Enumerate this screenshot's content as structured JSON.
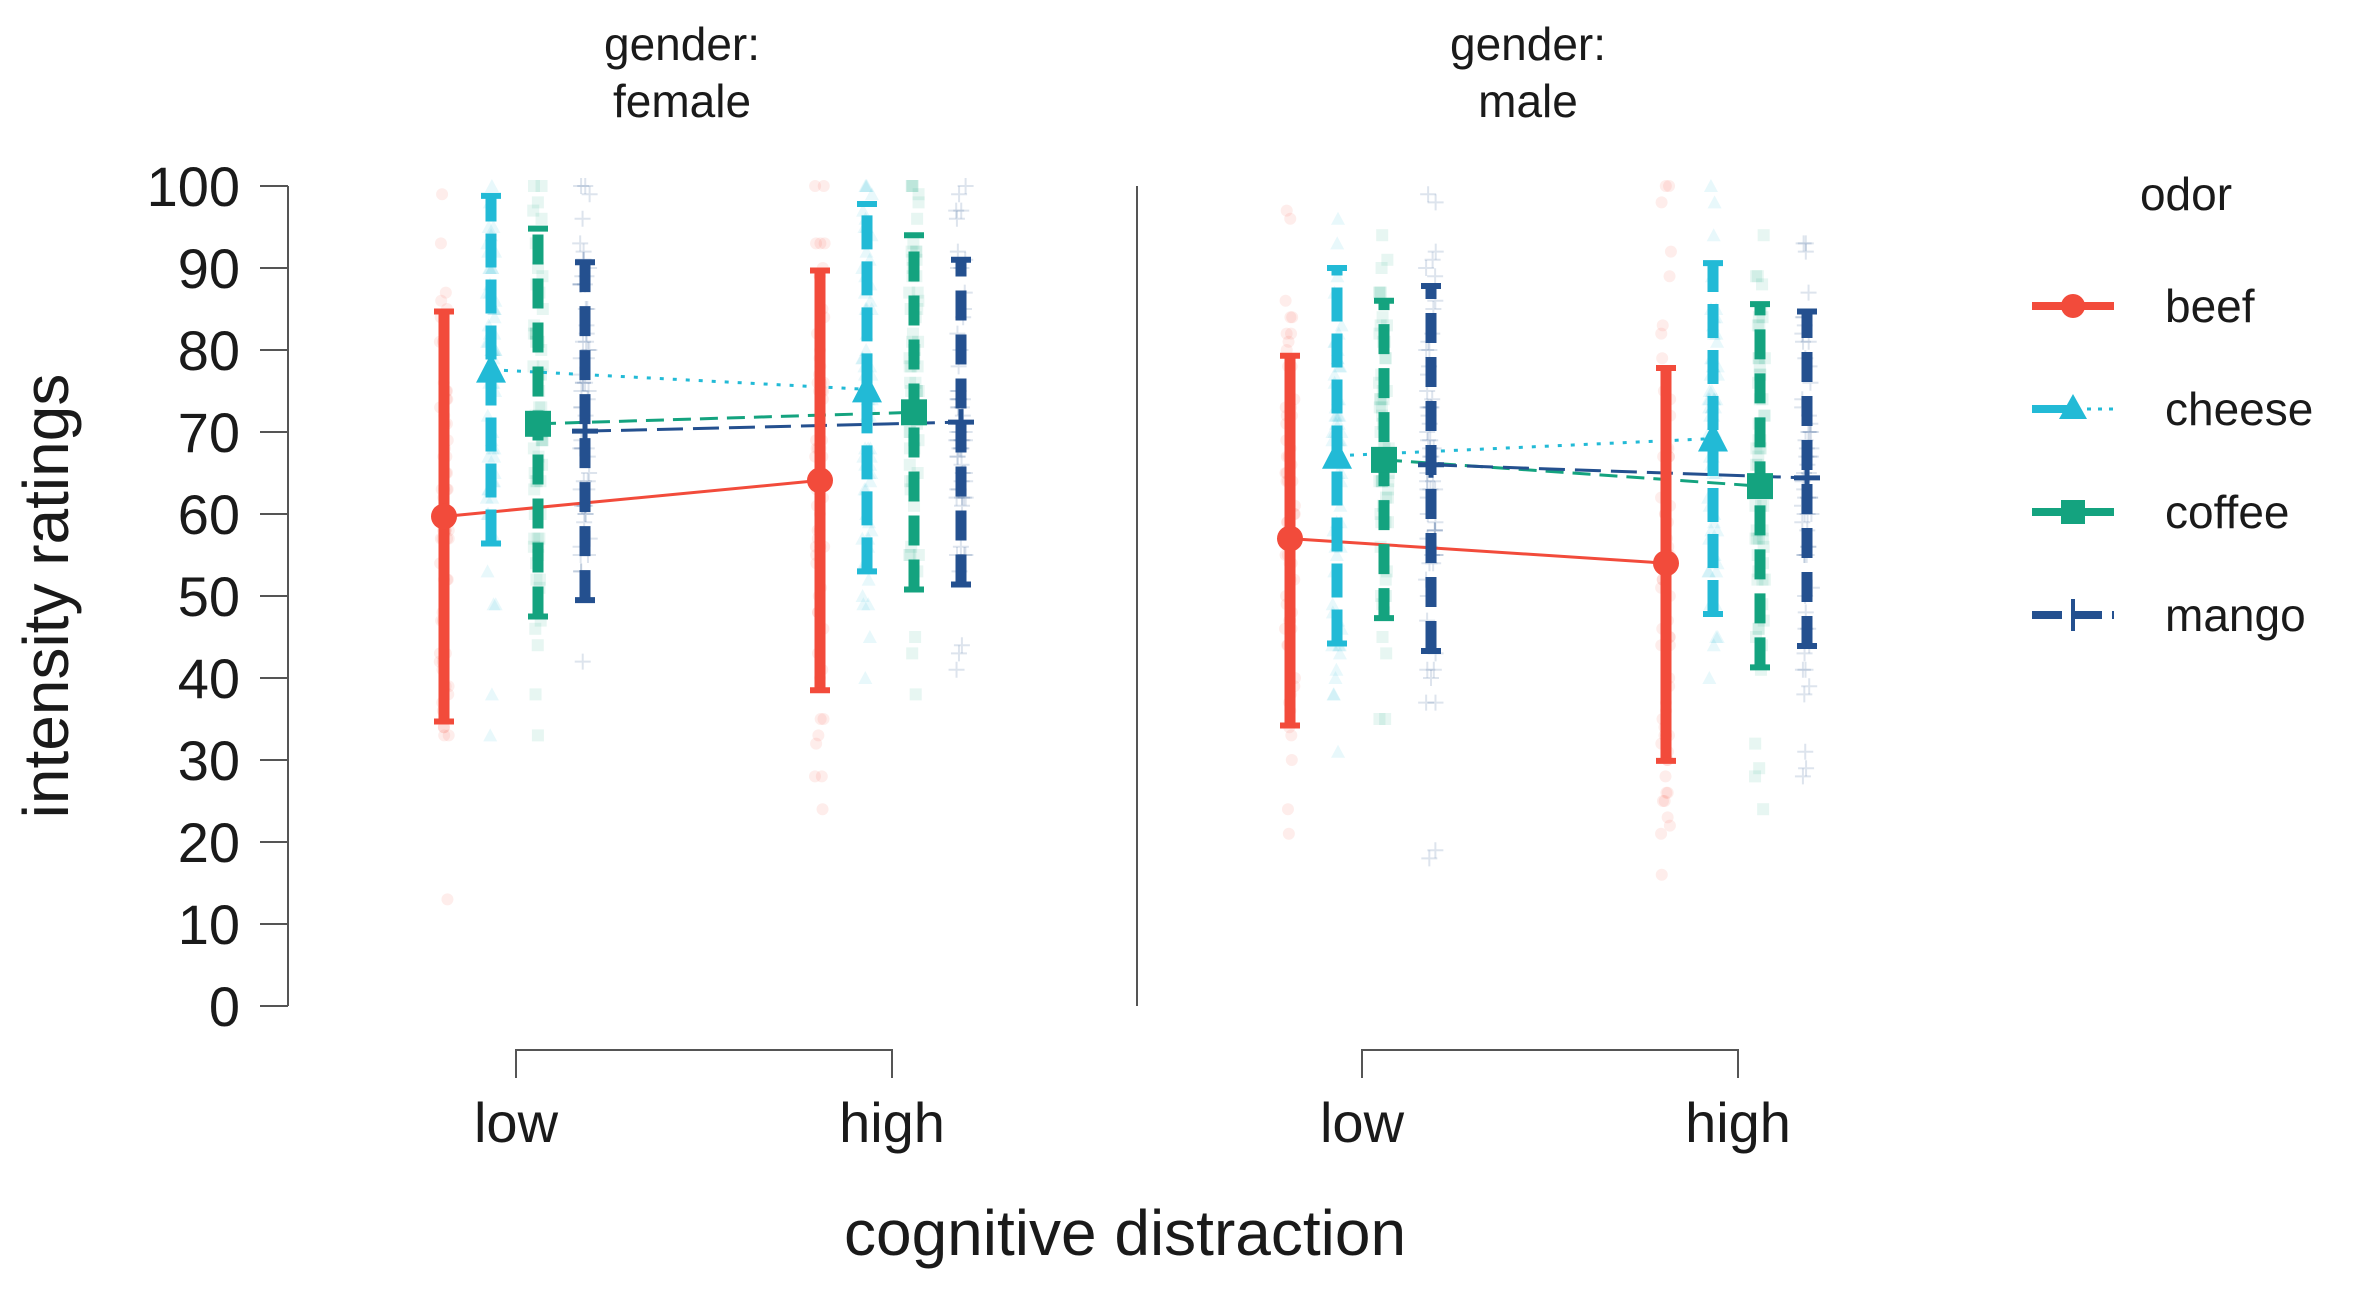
{
  "chart_data": {
    "type": "line",
    "ylabel": "intensity ratings",
    "xlabel": "cognitive distraction",
    "ylim": [
      0,
      100
    ],
    "yticks": [
      0,
      10,
      20,
      30,
      40,
      50,
      60,
      70,
      80,
      90,
      100
    ],
    "categories": [
      "low",
      "high"
    ],
    "legend": {
      "title": "odor",
      "placement": "right"
    },
    "series_style": [
      {
        "name": "beef",
        "color": "#f24b3b",
        "marker": "circle",
        "dash": "solid"
      },
      {
        "name": "cheese",
        "color": "#22bad6",
        "marker": "triangle",
        "dash": "dotted"
      },
      {
        "name": "coffee",
        "color": "#14a37f",
        "marker": "square",
        "dash": "dashed"
      },
      {
        "name": "mango",
        "color": "#24508f",
        "marker": "plus",
        "dash": "longdash"
      }
    ],
    "facets": [
      {
        "title_line1": "gender:",
        "title_line2": "female",
        "series": [
          {
            "name": "beef",
            "means": [
              59.7,
              64.1
            ],
            "lower": [
              34.7,
              38.5
            ],
            "upper": [
              84.7,
              89.7
            ]
          },
          {
            "name": "cheese",
            "means": [
              77.6,
              75.2
            ],
            "lower": [
              56.4,
              53.0
            ],
            "upper": [
              98.8,
              97.8
            ]
          },
          {
            "name": "coffee",
            "means": [
              71.0,
              72.4
            ],
            "lower": [
              47.5,
              50.8
            ],
            "upper": [
              94.8,
              94.0
            ]
          },
          {
            "name": "mango",
            "means": [
              70.1,
              71.2
            ],
            "lower": [
              49.5,
              51.4
            ],
            "upper": [
              90.7,
              91.0
            ]
          }
        ]
      },
      {
        "title_line1": "gender:",
        "title_line2": "male",
        "series": [
          {
            "name": "beef",
            "means": [
              57.0,
              54.0
            ],
            "lower": [
              34.2,
              29.9
            ],
            "upper": [
              79.3,
              77.8
            ]
          },
          {
            "name": "cheese",
            "means": [
              67.1,
              69.2
            ],
            "lower": [
              44.2,
              47.8
            ],
            "upper": [
              90.0,
              90.6
            ]
          },
          {
            "name": "coffee",
            "means": [
              66.6,
              63.4
            ],
            "lower": [
              47.3,
              41.3
            ],
            "upper": [
              86.0,
              85.6
            ]
          },
          {
            "name": "mango",
            "means": [
              66.0,
              64.4
            ],
            "lower": [
              43.3,
              43.9
            ],
            "upper": [
              87.8,
              84.7
            ]
          }
        ]
      }
    ]
  }
}
